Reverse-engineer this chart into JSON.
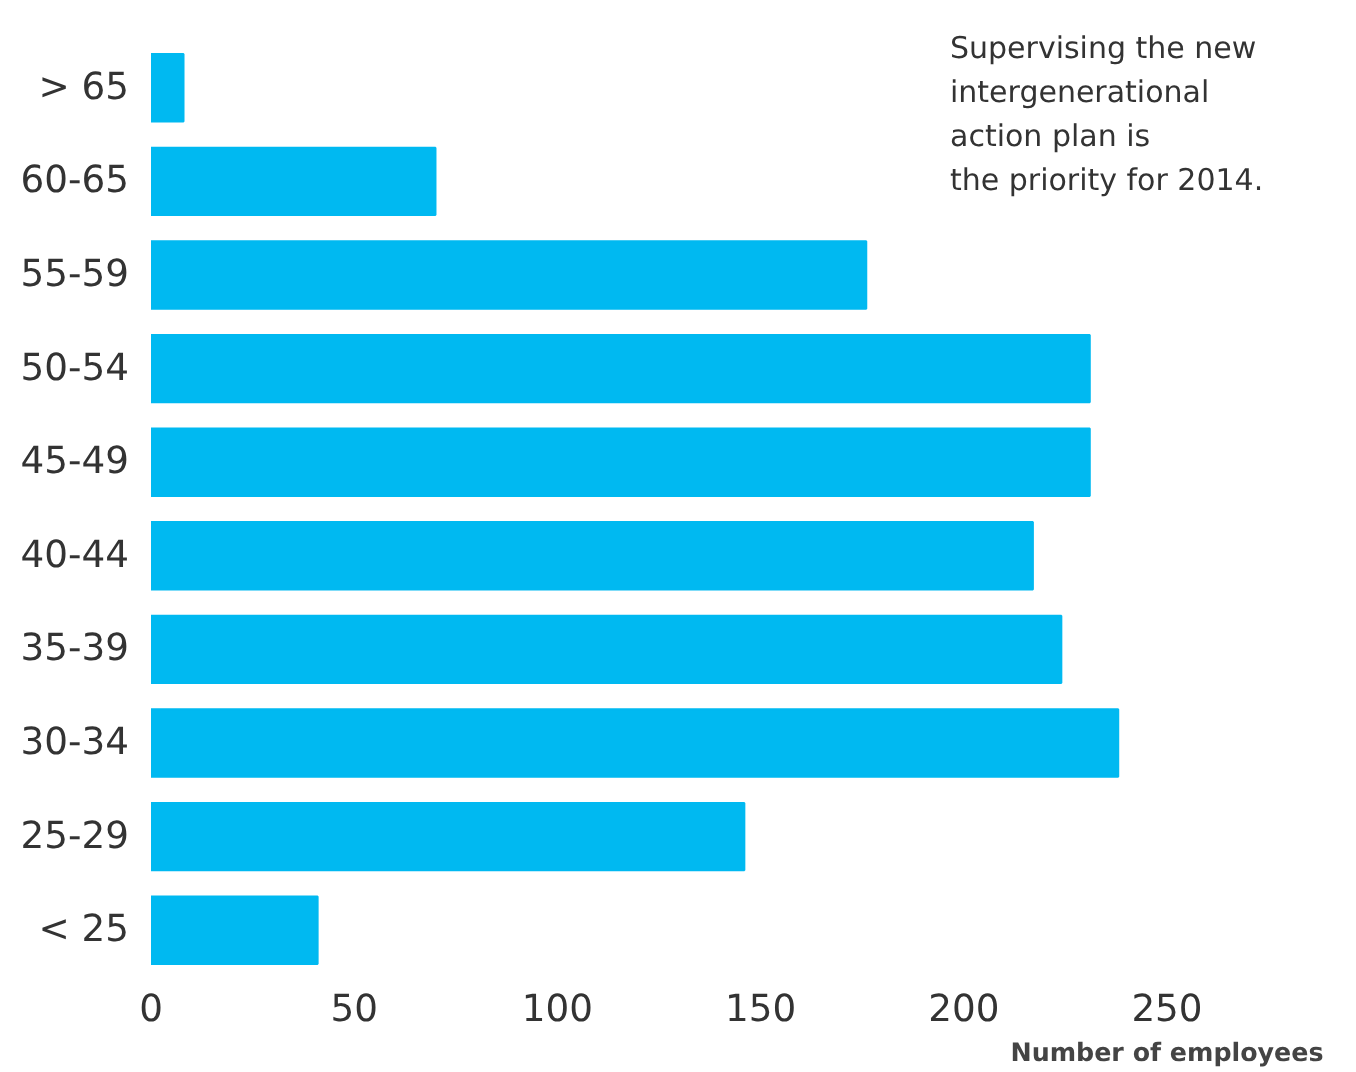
{
  "chart_data": {
    "type": "bar",
    "orientation": "horizontal",
    "xlabel": "Number of employees",
    "categories": [
      "> 65",
      "60-65",
      "55-59",
      "50-54",
      "45-49",
      "40-44",
      "35-39",
      "30-34",
      "25-29",
      "< 25"
    ],
    "values": [
      8,
      70,
      176,
      231,
      231,
      217,
      224,
      238,
      146,
      41
    ],
    "color": "#00b9f1",
    "xlim": [
      0,
      250
    ],
    "xticks": [
      0,
      50,
      100,
      150,
      200,
      250
    ],
    "grid": false,
    "annotations": [
      "Supervising the new\nintergenerational\naction plan is\nthe priority for 2014."
    ]
  }
}
